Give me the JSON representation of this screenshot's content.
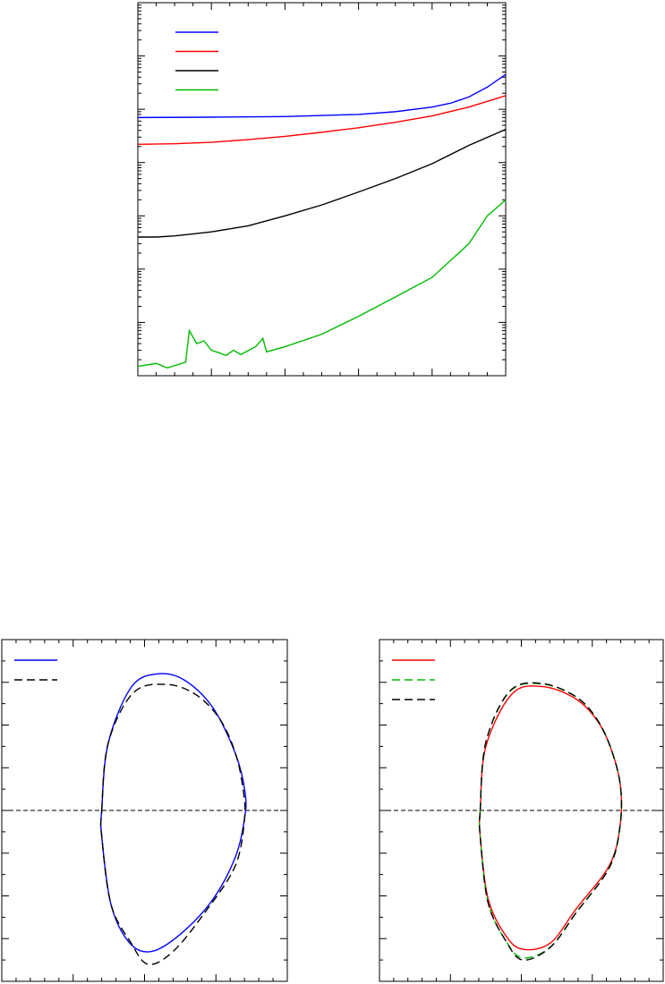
{
  "colors": {
    "blue": "#0000ff",
    "red": "#ff0000",
    "black": "#000000",
    "green": "#00bb00"
  },
  "chart_data": [
    {
      "type": "line",
      "yscale": "log",
      "xlim": [
        0,
        1
      ],
      "ylim": [
        0.0001,
        1000
      ],
      "grid": false,
      "legend": "top-left",
      "series": [
        {
          "color": "#0000ff",
          "x": [
            0,
            0.2,
            0.4,
            0.6,
            0.7,
            0.8,
            0.85,
            0.9,
            0.95,
            1.0
          ],
          "y": [
            7,
            7.1,
            7.3,
            8,
            9,
            11,
            13,
            17,
            26,
            45
          ]
        },
        {
          "color": "#ff0000",
          "x": [
            0,
            0.1,
            0.2,
            0.3,
            0.4,
            0.5,
            0.6,
            0.7,
            0.8,
            0.9,
            1.0
          ],
          "y": [
            2.2,
            2.25,
            2.4,
            2.7,
            3.1,
            3.7,
            4.5,
            5.7,
            7.5,
            11,
            18
          ]
        },
        {
          "color": "#000000",
          "x": [
            0,
            0.05,
            0.1,
            0.14,
            0.2,
            0.3,
            0.4,
            0.5,
            0.6,
            0.7,
            0.8,
            0.9,
            1.0
          ],
          "y": [
            0.04,
            0.04,
            0.042,
            0.045,
            0.05,
            0.065,
            0.1,
            0.16,
            0.28,
            0.5,
            0.95,
            2.1,
            4.2
          ]
        },
        {
          "color": "#00bb00",
          "x": [
            0,
            0.05,
            0.08,
            0.13,
            0.14,
            0.16,
            0.18,
            0.2,
            0.22,
            0.24,
            0.26,
            0.28,
            0.32,
            0.34,
            0.35,
            0.4,
            0.5,
            0.6,
            0.7,
            0.8,
            0.9,
            0.95,
            1.0
          ],
          "y": [
            0.00015,
            0.00017,
            0.00014,
            0.00018,
            0.0007,
            0.0004,
            0.00045,
            0.0003,
            0.00027,
            0.00024,
            0.0003,
            0.00025,
            0.00035,
            0.0005,
            0.00028,
            0.00035,
            0.0006,
            0.0013,
            0.003,
            0.007,
            0.03,
            0.1,
            0.2
          ]
        }
      ]
    },
    {
      "type": "line",
      "xlim": [
        0,
        4
      ],
      "ylim": [
        -4,
        4
      ],
      "grid": false,
      "legend": "top-left",
      "zero_line": 0,
      "series": [
        {
          "color": "#0000ff",
          "dash": "solid",
          "x": [
            1.4,
            1.49,
            1.82,
            2.2,
            2.56,
            2.96,
            3.28,
            3.41,
            3.4,
            3.27,
            2.95,
            2.5,
            2.1,
            1.79,
            1.53,
            1.4
          ],
          "y": [
            0,
            1.57,
            2.9,
            3.2,
            3.05,
            2.4,
            1.3,
            0.4,
            -0.2,
            -1.1,
            -2.1,
            -2.9,
            -3.3,
            -3.1,
            -2.2,
            -0.6
          ]
        },
        {
          "color": "#000000",
          "dash": "dashed",
          "x": [
            1.4,
            1.49,
            1.84,
            2.31,
            2.73,
            3.07,
            3.28,
            3.38,
            3.4,
            3.27,
            2.84,
            2.4,
            2.05,
            1.81,
            1.53,
            1.4
          ],
          "y": [
            0,
            1.57,
            2.75,
            2.95,
            2.7,
            2.1,
            1.3,
            0.5,
            -0.2,
            -1.3,
            -2.4,
            -3.3,
            -3.6,
            -3.1,
            -2.2,
            -0.6
          ]
        }
      ]
    },
    {
      "type": "line",
      "xlim": [
        0,
        4
      ],
      "ylim": [
        -4,
        4
      ],
      "grid": false,
      "legend": "top-left",
      "zero_line": 0,
      "series": [
        {
          "color": "#ff0000",
          "dash": "solid",
          "x": [
            1.42,
            1.5,
            1.87,
            2.3,
            2.76,
            3.08,
            3.28,
            3.4,
            3.39,
            3.24,
            2.77,
            2.41,
            2.02,
            1.78,
            1.53,
            1.42
          ],
          "y": [
            0,
            1.5,
            2.73,
            2.9,
            2.62,
            2.08,
            1.37,
            0.53,
            -0.38,
            -1.29,
            -2.31,
            -3.1,
            -3.25,
            -2.93,
            -2.06,
            -0.6
          ]
        },
        {
          "color": "#00bb00",
          "dash": "dashed",
          "x": [
            1.42,
            1.5,
            1.84,
            2.3,
            2.78,
            3.08,
            3.28,
            3.4,
            3.39,
            3.24,
            2.77,
            2.41,
            2.02,
            1.78,
            1.53,
            1.42
          ],
          "y": [
            0,
            1.6,
            2.79,
            2.96,
            2.65,
            2.1,
            1.37,
            0.53,
            -0.38,
            -1.34,
            -2.4,
            -3.2,
            -3.45,
            -3.05,
            -2.15,
            -0.6
          ]
        },
        {
          "color": "#000000",
          "dash": "dashed",
          "x": [
            1.42,
            1.5,
            1.84,
            2.3,
            2.78,
            3.08,
            3.28,
            3.4,
            3.39,
            3.24,
            2.77,
            2.41,
            2.02,
            1.78,
            1.53,
            1.42
          ],
          "y": [
            0,
            1.6,
            2.8,
            2.97,
            2.65,
            2.1,
            1.37,
            0.53,
            -0.38,
            -1.34,
            -2.4,
            -3.2,
            -3.5,
            -3.05,
            -2.15,
            -0.6
          ]
        }
      ]
    }
  ]
}
